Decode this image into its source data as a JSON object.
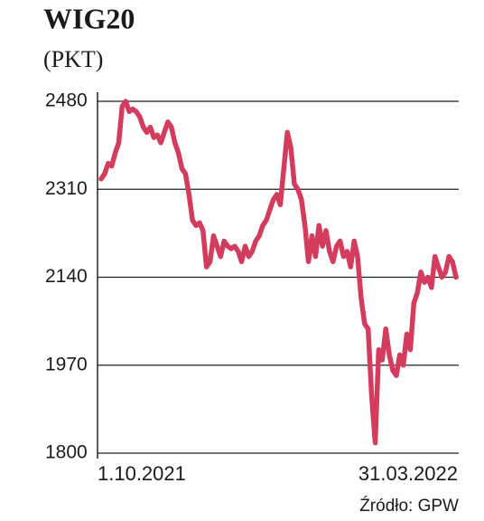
{
  "chart_data": {
    "type": "line",
    "title": "WIG20",
    "subtitle": "(PKT)",
    "source": "Źródło: GPW",
    "categories": [
      "1.10.2021",
      null,
      null,
      null,
      null,
      null,
      null,
      null,
      null,
      null,
      null,
      null,
      null,
      null,
      null,
      null,
      null,
      null,
      null,
      null,
      null,
      null,
      null,
      null,
      null,
      null,
      null,
      null,
      null,
      null,
      null,
      null,
      null,
      null,
      null,
      null,
      null,
      null,
      null,
      null,
      null,
      null,
      null,
      null,
      null,
      null,
      null,
      null,
      null,
      null,
      null,
      null,
      null,
      null,
      null,
      null,
      null,
      null,
      null,
      null,
      null,
      null,
      null,
      null,
      null,
      null,
      null,
      null,
      null,
      null,
      null,
      null,
      null,
      null,
      null,
      null,
      null,
      null,
      null,
      null,
      null,
      null,
      null,
      null,
      null,
      null,
      null,
      null,
      null,
      null,
      null,
      null,
      null,
      null,
      null,
      null,
      null,
      null,
      null,
      null,
      null,
      "31.03.2022"
    ],
    "values": [
      2330,
      2340,
      2360,
      2355,
      2380,
      2400,
      2470,
      2480,
      2460,
      2465,
      2460,
      2450,
      2430,
      2420,
      2430,
      2410,
      2415,
      2400,
      2420,
      2440,
      2430,
      2400,
      2380,
      2350,
      2340,
      2300,
      2250,
      2240,
      2245,
      2230,
      2160,
      2170,
      2220,
      2200,
      2180,
      2210,
      2200,
      2195,
      2200,
      2190,
      2170,
      2200,
      2180,
      2190,
      2210,
      2220,
      2240,
      2250,
      2270,
      2290,
      2300,
      2280,
      2350,
      2420,
      2390,
      2320,
      2310,
      2290,
      2240,
      2170,
      2220,
      2180,
      2240,
      2200,
      2230,
      2190,
      2170,
      2200,
      2210,
      2180,
      2190,
      2160,
      2210,
      2180,
      2100,
      2050,
      2040,
      1910,
      1820,
      2000,
      1980,
      2040,
      1990,
      1960,
      1950,
      1990,
      1970,
      2030,
      2000,
      2090,
      2110,
      2150,
      2130,
      2140,
      2120,
      2180,
      2160,
      2140,
      2150,
      2180,
      2170,
      2140
    ],
    "color": "#d33c5c",
    "ylim": [
      1800,
      2480
    ],
    "yticks": [
      1800,
      1970,
      2140,
      2310,
      2480
    ],
    "grid": true
  }
}
